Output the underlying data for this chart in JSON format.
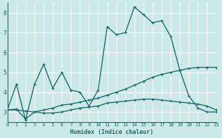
{
  "xlabel": "Humidex (Indice chaleur)",
  "bg_color": "#cce9e9",
  "grid_color": "#ffffff",
  "line_color": "#1a6b6b",
  "xlim": [
    0,
    23
  ],
  "ylim": [
    2.5,
    8.5
  ],
  "yticks": [
    3,
    4,
    5,
    6,
    7,
    8
  ],
  "xticks": [
    0,
    1,
    2,
    3,
    4,
    5,
    6,
    7,
    8,
    9,
    10,
    11,
    12,
    13,
    14,
    15,
    16,
    17,
    18,
    19,
    20,
    21,
    22,
    23
  ],
  "line1_x": [
    0,
    1,
    2,
    3,
    4,
    5,
    6,
    7,
    8,
    9,
    10,
    11,
    12,
    13,
    14,
    15,
    16,
    17,
    18,
    19,
    20,
    21,
    22,
    23
  ],
  "line1_y": [
    3.1,
    4.4,
    2.6,
    4.4,
    5.4,
    4.2,
    5.0,
    4.1,
    4.0,
    3.3,
    4.1,
    7.3,
    6.9,
    7.0,
    8.3,
    7.9,
    7.5,
    7.6,
    6.8,
    5.1,
    3.8,
    3.2,
    3.0,
    3.0
  ],
  "line2_x": [
    0,
    1,
    2,
    3,
    4,
    5,
    6,
    7,
    8,
    9,
    10,
    11,
    12,
    13,
    14,
    15,
    16,
    17,
    18,
    19,
    20,
    21,
    22,
    23
  ],
  "line2_y": [
    3.1,
    3.15,
    2.65,
    3.0,
    3.1,
    3.2,
    3.35,
    3.4,
    3.5,
    3.6,
    3.7,
    3.85,
    4.0,
    4.15,
    4.35,
    4.55,
    4.75,
    4.9,
    5.0,
    5.1,
    5.2,
    5.25,
    5.25,
    5.25
  ],
  "line3_x": [
    0,
    1,
    2,
    3,
    4,
    5,
    6,
    7,
    8,
    9,
    10,
    11,
    12,
    13,
    14,
    15,
    16,
    17,
    18,
    19,
    20,
    21,
    22,
    23
  ],
  "line3_y": [
    3.1,
    3.1,
    3.05,
    3.0,
    2.95,
    2.95,
    3.0,
    3.1,
    3.2,
    3.25,
    3.3,
    3.45,
    3.5,
    3.55,
    3.6,
    3.65,
    3.65,
    3.6,
    3.55,
    3.5,
    3.45,
    3.4,
    3.3,
    3.1
  ]
}
